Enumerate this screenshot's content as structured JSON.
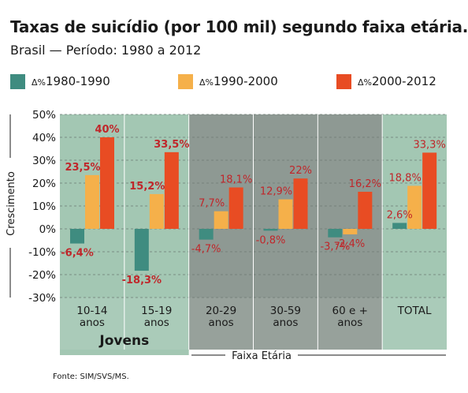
{
  "chart_data": {
    "type": "bar",
    "title": "Taxas de suicídio (por 100 mil) segundo faixa etária.",
    "subtitle": "Brasil — Período: 1980 a 2012",
    "ylabel": "Crescimento",
    "xlabel": "Faixa Etária",
    "ylim": [
      -30,
      50
    ],
    "yticks": [
      {
        "value": 50,
        "label": "50%"
      },
      {
        "value": 40,
        "label": "40%"
      },
      {
        "value": 30,
        "label": "30%"
      },
      {
        "value": 20,
        "label": "20%"
      },
      {
        "value": 10,
        "label": "10%"
      },
      {
        "value": 0,
        "label": "0%"
      },
      {
        "value": -10,
        "label": "-10%"
      },
      {
        "value": -20,
        "label": "-20%"
      },
      {
        "value": -30,
        "label": "-30%"
      }
    ],
    "categories": [
      [
        "10-14",
        "anos"
      ],
      [
        "15-19",
        "anos"
      ],
      [
        "20-29",
        "anos"
      ],
      [
        "30-59",
        "anos"
      ],
      [
        "60 e +",
        "anos"
      ],
      [
        "TOTAL"
      ]
    ],
    "group_label": "Jovens",
    "series": [
      {
        "name_prefix": "Δ%",
        "name": "1980-1990",
        "color": "#3f8c80",
        "values": [
          -6.4,
          -18.3,
          -4.7,
          -0.8,
          -3.7,
          2.6
        ],
        "labels": [
          "-6,4%",
          "-18,3%",
          "-4,7%",
          "-0,8%",
          "-3,7%",
          "2,6%"
        ]
      },
      {
        "name_prefix": "Δ%",
        "name": "1990-2000",
        "color": "#f5b04a",
        "values": [
          23.5,
          15.2,
          7.7,
          12.9,
          -2.4,
          18.8
        ],
        "labels": [
          "23,5%",
          "15,2%",
          "7,7%",
          "12,9%",
          "-2,4%",
          "18,8%"
        ]
      },
      {
        "name_prefix": "Δ%",
        "name": "2000-2012",
        "color": "#e84c23",
        "values": [
          40,
          33.5,
          18.1,
          22,
          16.2,
          33.3
        ],
        "labels": [
          "40%",
          "33,5%",
          "18,1%",
          "22%",
          "16,2%",
          "33,3%"
        ]
      }
    ],
    "grid": true,
    "legend_position": "top",
    "label_color": "#c0262a"
  },
  "source": "Fonte: SIM/SVS/MS."
}
